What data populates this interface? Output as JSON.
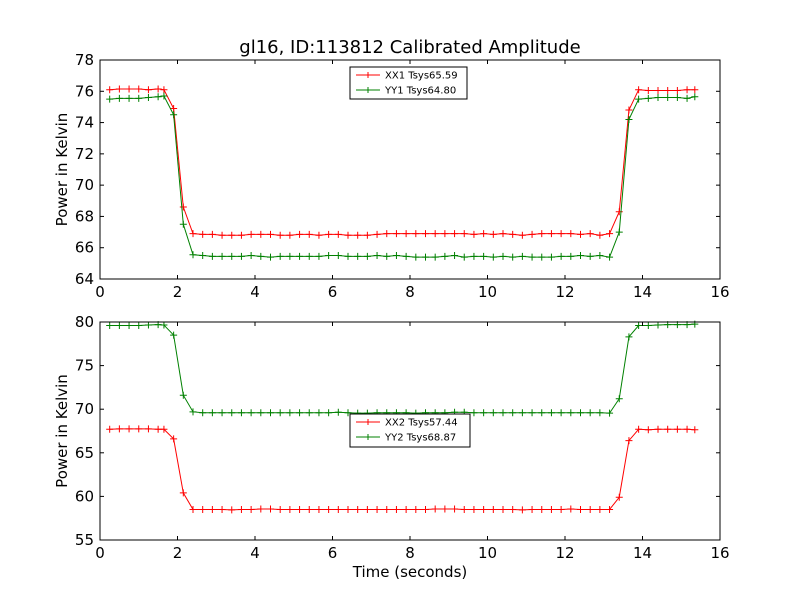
{
  "chart_data": [
    {
      "type": "line",
      "title": "gl16, ID:113812 Calibrated Amplitude",
      "xlabel": "",
      "ylabel": "Power in Kelvin",
      "xlim": [
        0,
        16
      ],
      "ylim": [
        64,
        78
      ],
      "xticks": [
        "0",
        "2",
        "4",
        "6",
        "8",
        "10",
        "12",
        "14",
        "16"
      ],
      "yticks": [
        "64",
        "66",
        "68",
        "70",
        "72",
        "74",
        "76",
        "78"
      ],
      "legend_position": "top-center",
      "x": [
        0.25,
        0.5,
        0.75,
        1.0,
        1.25,
        1.5,
        1.65,
        1.9,
        2.15,
        2.4,
        2.65,
        2.9,
        3.15,
        3.4,
        3.65,
        3.9,
        4.15,
        4.4,
        4.65,
        4.9,
        5.15,
        5.4,
        5.65,
        5.9,
        6.15,
        6.4,
        6.65,
        6.9,
        7.15,
        7.4,
        7.65,
        7.9,
        8.15,
        8.4,
        8.65,
        8.9,
        9.15,
        9.4,
        9.65,
        9.9,
        10.15,
        10.4,
        10.65,
        10.9,
        11.15,
        11.4,
        11.65,
        11.9,
        12.15,
        12.4,
        12.65,
        12.9,
        13.15,
        13.4,
        13.65,
        13.9,
        14.15,
        14.4,
        14.65,
        14.9,
        15.15,
        15.35
      ],
      "series": [
        {
          "name": "XX1 Tsys65.59",
          "color": "#ff0000",
          "values": [
            76.1,
            76.15,
            76.15,
            76.15,
            76.1,
            76.15,
            76.1,
            74.9,
            68.6,
            66.9,
            66.85,
            66.85,
            66.8,
            66.8,
            66.8,
            66.85,
            66.85,
            66.85,
            66.8,
            66.8,
            66.85,
            66.85,
            66.8,
            66.85,
            66.85,
            66.8,
            66.8,
            66.8,
            66.85,
            66.9,
            66.9,
            66.9,
            66.9,
            66.9,
            66.9,
            66.9,
            66.9,
            66.9,
            66.85,
            66.9,
            66.85,
            66.9,
            66.85,
            66.8,
            66.85,
            66.9,
            66.9,
            66.9,
            66.9,
            66.85,
            66.9,
            66.8,
            66.9,
            68.3,
            74.8,
            76.1,
            76.05,
            76.05,
            76.05,
            76.05,
            76.1,
            76.1
          ]
        },
        {
          "name": "YY1 Tsys64.80",
          "color": "#008000",
          "values": [
            75.5,
            75.55,
            75.55,
            75.55,
            75.6,
            75.65,
            75.7,
            74.5,
            67.5,
            65.55,
            65.5,
            65.45,
            65.45,
            65.45,
            65.45,
            65.5,
            65.45,
            65.4,
            65.45,
            65.45,
            65.45,
            65.45,
            65.45,
            65.5,
            65.5,
            65.45,
            65.45,
            65.45,
            65.5,
            65.45,
            65.5,
            65.45,
            65.4,
            65.4,
            65.4,
            65.45,
            65.5,
            65.4,
            65.45,
            65.45,
            65.4,
            65.45,
            65.4,
            65.45,
            65.4,
            65.4,
            65.4,
            65.45,
            65.45,
            65.5,
            65.45,
            65.5,
            65.4,
            67.0,
            74.2,
            75.5,
            75.55,
            75.6,
            75.6,
            75.6,
            75.55,
            75.65
          ]
        }
      ]
    },
    {
      "type": "line",
      "title": "",
      "xlabel": "Time (seconds)",
      "ylabel": "Power in Kelvin",
      "xlim": [
        0,
        16
      ],
      "ylim": [
        55,
        80
      ],
      "xticks": [
        "0",
        "2",
        "4",
        "6",
        "8",
        "10",
        "12",
        "14",
        "16"
      ],
      "yticks": [
        "55",
        "60",
        "65",
        "70",
        "75",
        "80"
      ],
      "legend_position": "center",
      "x": [
        0.25,
        0.5,
        0.75,
        1.0,
        1.25,
        1.5,
        1.65,
        1.9,
        2.15,
        2.4,
        2.65,
        2.9,
        3.15,
        3.4,
        3.65,
        3.9,
        4.15,
        4.4,
        4.65,
        4.9,
        5.15,
        5.4,
        5.65,
        5.9,
        6.15,
        6.4,
        6.65,
        6.9,
        7.15,
        7.4,
        7.65,
        7.9,
        8.15,
        8.4,
        8.65,
        8.9,
        9.15,
        9.4,
        9.65,
        9.9,
        10.15,
        10.4,
        10.65,
        10.9,
        11.15,
        11.4,
        11.65,
        11.9,
        12.15,
        12.4,
        12.65,
        12.9,
        13.15,
        13.4,
        13.65,
        13.9,
        14.15,
        14.4,
        14.65,
        14.9,
        15.15,
        15.35
      ],
      "series": [
        {
          "name": "XX2 Tsys57.44",
          "color": "#ff0000",
          "values": [
            67.7,
            67.75,
            67.75,
            67.75,
            67.75,
            67.7,
            67.7,
            66.6,
            60.4,
            58.5,
            58.5,
            58.5,
            58.5,
            58.45,
            58.5,
            58.5,
            58.55,
            58.55,
            58.5,
            58.5,
            58.5,
            58.5,
            58.5,
            58.5,
            58.5,
            58.5,
            58.5,
            58.5,
            58.5,
            58.5,
            58.5,
            58.5,
            58.5,
            58.5,
            58.55,
            58.55,
            58.55,
            58.5,
            58.5,
            58.5,
            58.5,
            58.5,
            58.5,
            58.45,
            58.5,
            58.5,
            58.5,
            58.5,
            58.55,
            58.5,
            58.5,
            58.5,
            58.5,
            59.9,
            66.4,
            67.7,
            67.65,
            67.7,
            67.7,
            67.7,
            67.7,
            67.65
          ]
        },
        {
          "name": "YY2 Tsys68.87",
          "color": "#008000",
          "values": [
            79.6,
            79.6,
            79.6,
            79.6,
            79.65,
            79.7,
            79.65,
            78.5,
            71.6,
            69.7,
            69.6,
            69.6,
            69.6,
            69.6,
            69.6,
            69.6,
            69.6,
            69.6,
            69.6,
            69.6,
            69.6,
            69.6,
            69.6,
            69.6,
            69.65,
            69.6,
            69.55,
            69.55,
            69.6,
            69.6,
            69.6,
            69.6,
            69.55,
            69.6,
            69.6,
            69.6,
            69.65,
            69.65,
            69.6,
            69.6,
            69.6,
            69.6,
            69.6,
            69.6,
            69.6,
            69.6,
            69.6,
            69.6,
            69.6,
            69.6,
            69.6,
            69.6,
            69.55,
            71.2,
            78.3,
            79.6,
            79.6,
            79.65,
            79.7,
            79.7,
            79.7,
            79.75
          ]
        }
      ]
    }
  ]
}
